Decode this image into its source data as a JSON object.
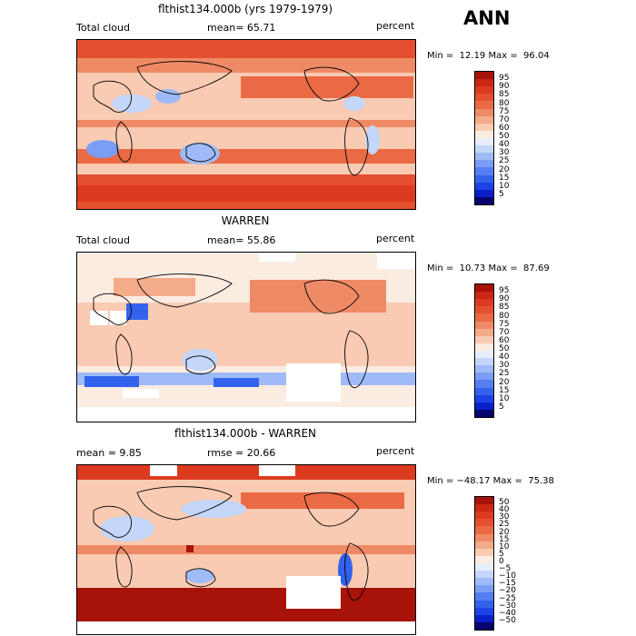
{
  "season": "ANN",
  "colors": {
    "abs_scale": [
      "#08046e",
      "#0a1fc6",
      "#1c43e5",
      "#3363ec",
      "#557ef2",
      "#7b9df5",
      "#9fbbf7",
      "#c4d6f9",
      "#e7eefb",
      "#fbece2",
      "#f8cbb2",
      "#f4ab8a",
      "#ef8a66",
      "#ea6a45",
      "#e4502f",
      "#dc3a1f",
      "#c92613",
      "#a71309"
    ],
    "diff_scale": [
      "#08046e",
      "#0a1fc6",
      "#1c43e5",
      "#3363ec",
      "#557ef2",
      "#7b9df5",
      "#9fbbf7",
      "#c4d6f9",
      "#e7eefb",
      "#fbece2",
      "#f8cbb2",
      "#f4ab8a",
      "#ef8a66",
      "#ea6a45",
      "#e4502f",
      "#dc3a1f",
      "#c92613",
      "#a71309"
    ]
  },
  "panels": [
    {
      "title": "flthist134.000b (yrs 1979-1979)",
      "left_label": "Total cloud",
      "center_label": "mean=  65.71",
      "right_label": "percent",
      "stats": "Min =  12.19 Max =  96.04",
      "colorbar_labels": [
        "95",
        "90",
        "85",
        "80",
        "75",
        "70",
        "60",
        "50",
        "40",
        "30",
        "25",
        "20",
        "15",
        "10",
        "5"
      ]
    },
    {
      "title": "WARREN",
      "left_label": "Total cloud",
      "center_label": "mean=  55.86",
      "right_label": "percent",
      "stats": "Min =  10.73 Max =  87.69",
      "colorbar_labels": [
        "95",
        "90",
        "85",
        "80",
        "75",
        "70",
        "60",
        "50",
        "40",
        "30",
        "25",
        "20",
        "15",
        "10",
        "5"
      ]
    },
    {
      "title": "flthist134.000b - WARREN",
      "left_label": "mean =   9.85",
      "center_label": "rmse =  20.66",
      "right_label": "percent",
      "stats": "Min = −48.17 Max =  75.38",
      "colorbar_labels": [
        "50",
        "40",
        "30",
        "25",
        "20",
        "15",
        "10",
        "5",
        "0",
        "−5",
        "−10",
        "−15",
        "−20",
        "−25",
        "−30",
        "−40",
        "−50"
      ]
    }
  ]
}
